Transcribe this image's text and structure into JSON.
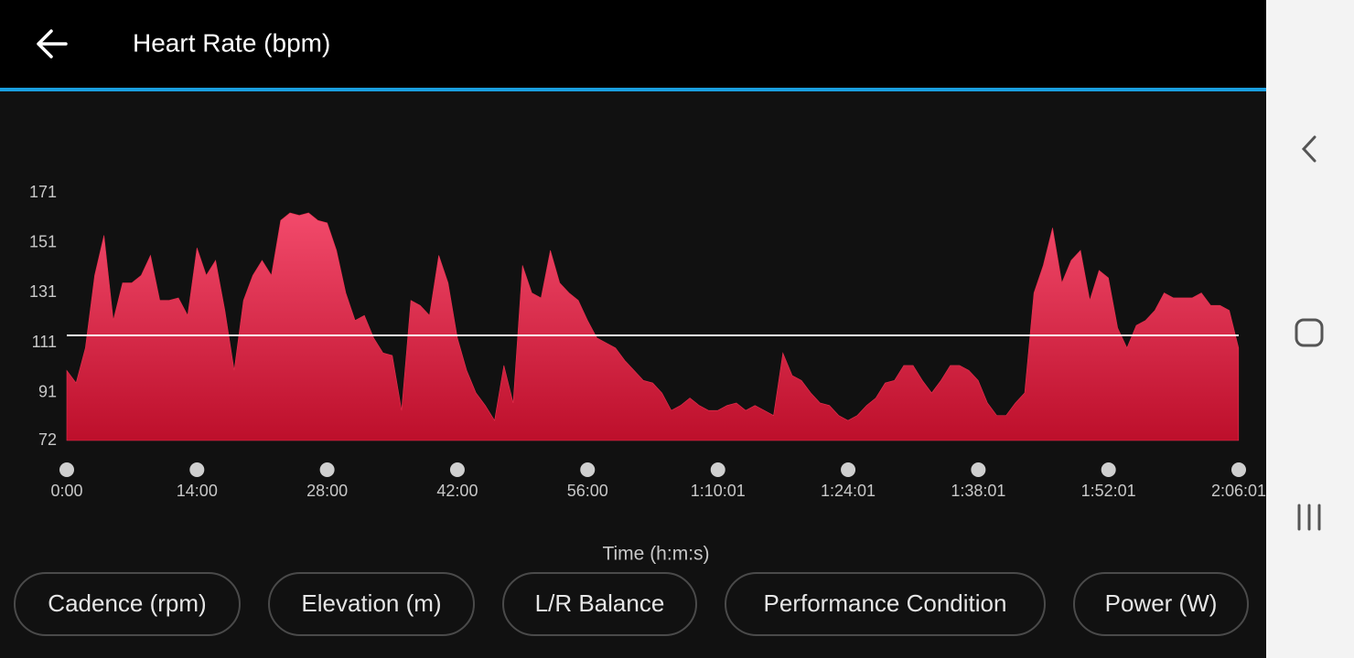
{
  "header": {
    "title": "Heart Rate (bpm)"
  },
  "chart_data": {
    "type": "area",
    "x_label": "Time (h:m:s)",
    "color": "#e8304f",
    "gradient": [
      "#f24a6b",
      "#bd0f2b"
    ],
    "reference_line": {
      "value": 114,
      "color": "#ffffff"
    },
    "xlim": [
      0,
      7561
    ],
    "ylim": [
      72,
      171
    ],
    "yticks": [
      72,
      91,
      111,
      131,
      151,
      171
    ],
    "xticks": [
      {
        "value": 0,
        "label": "0:00"
      },
      {
        "value": 840,
        "label": "14:00"
      },
      {
        "value": 1680,
        "label": "28:00"
      },
      {
        "value": 2520,
        "label": "42:00"
      },
      {
        "value": 3360,
        "label": "56:00"
      },
      {
        "value": 4201,
        "label": "1:10:01"
      },
      {
        "value": 5041,
        "label": "1:24:01"
      },
      {
        "value": 5881,
        "label": "1:38:01"
      },
      {
        "value": 6721,
        "label": "1:52:01"
      },
      {
        "value": 7561,
        "label": "2:06:01"
      }
    ],
    "x": [
      0,
      60,
      120,
      180,
      240,
      300,
      360,
      420,
      480,
      540,
      600,
      660,
      720,
      780,
      840,
      900,
      960,
      1020,
      1080,
      1140,
      1200,
      1260,
      1320,
      1380,
      1440,
      1500,
      1560,
      1620,
      1680,
      1740,
      1800,
      1860,
      1920,
      1980,
      2040,
      2100,
      2160,
      2220,
      2280,
      2340,
      2400,
      2460,
      2520,
      2580,
      2640,
      2700,
      2760,
      2820,
      2880,
      2940,
      3000,
      3060,
      3120,
      3180,
      3240,
      3300,
      3360,
      3420,
      3480,
      3540,
      3600,
      3660,
      3720,
      3780,
      3840,
      3900,
      3960,
      4020,
      4080,
      4140,
      4200,
      4260,
      4320,
      4380,
      4440,
      4500,
      4560,
      4620,
      4680,
      4740,
      4800,
      4860,
      4920,
      4980,
      5040,
      5100,
      5160,
      5220,
      5280,
      5340,
      5400,
      5460,
      5520,
      5580,
      5640,
      5700,
      5760,
      5820,
      5880,
      5940,
      6000,
      6060,
      6120,
      6180,
      6240,
      6300,
      6360,
      6420,
      6480,
      6540,
      6600,
      6660,
      6720,
      6780,
      6840,
      6900,
      6960,
      7020,
      7080,
      7140,
      7200,
      7260,
      7320,
      7380,
      7440,
      7500,
      7560
    ],
    "values": [
      100,
      95,
      109,
      138,
      154,
      120,
      135,
      135,
      138,
      146,
      128,
      128,
      129,
      122,
      149,
      138,
      144,
      124,
      100,
      128,
      138,
      144,
      138,
      160,
      163,
      162,
      163,
      160,
      159,
      148,
      131,
      120,
      122,
      113,
      107,
      106,
      84,
      128,
      126,
      122,
      146,
      135,
      113,
      100,
      91,
      86,
      80,
      102,
      87,
      142,
      131,
      129,
      148,
      135,
      131,
      128,
      120,
      113,
      111,
      109,
      104,
      100,
      96,
      95,
      91,
      84,
      86,
      89,
      86,
      84,
      84,
      86,
      87,
      84,
      86,
      84,
      82,
      107,
      98,
      96,
      91,
      87,
      86,
      82,
      80,
      82,
      86,
      89,
      95,
      96,
      102,
      102,
      96,
      91,
      96,
      102,
      102,
      100,
      96,
      87,
      82,
      82,
      87,
      91,
      131,
      142,
      157,
      135,
      144,
      148,
      128,
      140,
      137,
      117,
      109,
      118,
      120,
      124,
      131,
      129,
      129,
      129,
      131,
      126,
      126,
      124,
      109
    ]
  },
  "buttons": [
    "Cadence (rpm)",
    "Elevation (m)",
    "L/R Balance",
    "Performance Condition",
    "Power (W)"
  ]
}
